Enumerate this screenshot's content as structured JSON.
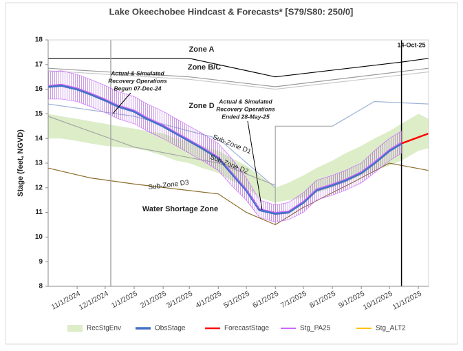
{
  "chart_data": {
    "type": "line",
    "title": "Lake Okeechobee Hindcast & Forecasts* [S79/S80: 250/0]",
    "y_label": "Stage (feet, NGVD)",
    "ylim": [
      8,
      18
    ],
    "yticks": [
      8,
      9,
      10,
      11,
      12,
      13,
      14,
      15,
      16,
      17,
      18
    ],
    "xlim": [
      "10/1/2024",
      "11/12/2025"
    ],
    "xticks": [
      "11/1/2024",
      "12/1/2024",
      "1/1/2025",
      "2/1/2025",
      "3/1/2025",
      "4/1/2025",
      "5/1/2025",
      "6/1/2025",
      "7/1/2025",
      "8/1/2025",
      "9/1/2025",
      "10/1/2025",
      "11/1/2025"
    ],
    "x": [
      "10/1/2024",
      "10/15/2024",
      "11/1/2024",
      "11/15/2024",
      "12/1/2024",
      "12/15/2024",
      "1/1/2025",
      "1/15/2025",
      "2/1/2025",
      "2/15/2025",
      "3/1/2025",
      "3/15/2025",
      "4/1/2025",
      "4/15/2025",
      "5/1/2025",
      "5/15/2025",
      "6/1/2025",
      "6/15/2025",
      "7/1/2025",
      "7/15/2025",
      "8/1/2025",
      "8/15/2025",
      "9/1/2025",
      "9/15/2025",
      "10/1/2025",
      "10/14/2025",
      "11/1/2025",
      "11/12/2025"
    ],
    "series": [
      {
        "name": "RecStgEnv",
        "color": "#dcedc8",
        "low": [
          14.0,
          14.0,
          13.9,
          13.8,
          13.7,
          13.65,
          13.6,
          13.5,
          13.3,
          13.1,
          13.0,
          12.8,
          12.6,
          12.3,
          12.0,
          11.6,
          11.4,
          11.5,
          11.6,
          11.8,
          12.0,
          12.2,
          12.5,
          12.7,
          12.9,
          13.1,
          13.5,
          13.6
        ],
        "high": [
          15.0,
          14.9,
          14.8,
          14.7,
          14.6,
          14.5,
          14.4,
          14.3,
          14.2,
          14.0,
          13.9,
          13.7,
          13.5,
          13.2,
          12.9,
          12.5,
          12.0,
          12.2,
          12.5,
          12.8,
          13.1,
          13.4,
          13.7,
          14.0,
          14.3,
          14.6,
          15.0,
          14.8
        ]
      },
      {
        "name": "ObsStage",
        "color": "#4472c4",
        "values": [
          16.1,
          16.15,
          16.0,
          15.8,
          15.55,
          15.3,
          15.1,
          14.8,
          14.5,
          14.2,
          13.9,
          13.6,
          13.2,
          12.6,
          11.9,
          11.1,
          10.95,
          11.0,
          11.4,
          11.9,
          12.1,
          12.3,
          12.6,
          13.0,
          13.5,
          13.8,
          null,
          null
        ]
      },
      {
        "name": "ForecastStage",
        "color": "#ff0000",
        "values": [
          null,
          null,
          null,
          null,
          null,
          null,
          null,
          null,
          null,
          null,
          null,
          null,
          null,
          null,
          null,
          null,
          null,
          null,
          null,
          null,
          null,
          null,
          null,
          null,
          null,
          13.8,
          14.05,
          14.2
        ]
      },
      {
        "name": "Stg_PA25",
        "color": "#cc66ff",
        "hatch": true,
        "values": [
          16.15,
          16.2,
          16.05,
          15.85,
          15.6,
          15.35,
          15.15,
          14.85,
          14.55,
          14.25,
          13.95,
          13.65,
          13.25,
          12.65,
          11.95,
          11.15,
          11.0,
          11.05,
          11.45,
          11.95,
          12.15,
          12.35,
          12.65,
          13.05,
          13.55,
          13.85,
          null,
          null
        ],
        "low": [
          15.6,
          15.6,
          15.5,
          15.3,
          15.05,
          14.8,
          14.6,
          14.3,
          14.0,
          13.7,
          13.4,
          13.1,
          12.7,
          12.1,
          11.5,
          10.8,
          10.6,
          10.7,
          11.0,
          11.5,
          11.7,
          11.9,
          12.2,
          12.6,
          13.1,
          13.4,
          null,
          null
        ],
        "high": [
          16.7,
          16.75,
          16.6,
          16.4,
          16.15,
          15.9,
          15.7,
          15.4,
          15.1,
          14.8,
          14.5,
          14.2,
          13.8,
          13.2,
          12.4,
          11.5,
          11.3,
          11.4,
          11.8,
          12.3,
          12.5,
          12.7,
          13.0,
          13.5,
          14.0,
          14.3,
          null,
          null
        ]
      },
      {
        "name": "Stg_ALT2",
        "color": "#ffc000",
        "values": [
          null,
          null,
          null,
          null,
          null,
          null,
          null,
          null,
          null,
          null,
          null,
          null,
          null,
          null,
          null,
          null,
          null,
          null,
          null,
          null,
          null,
          null,
          null,
          null,
          null,
          null,
          null,
          null
        ]
      }
    ],
    "reference_lines": [
      {
        "color": "#000000",
        "x": [
          "10/1/2024",
          "3/1/2025",
          "6/1/2025",
          "10/14/2025",
          "11/12/2025"
        ],
        "values": [
          17.25,
          17.25,
          16.5,
          17.1,
          17.25
        ]
      },
      {
        "color": "#999999",
        "x": [
          "10/1/2024",
          "3/1/2025",
          "6/1/2025",
          "11/12/2025"
        ],
        "values": [
          16.85,
          16.5,
          16.1,
          16.85
        ]
      },
      {
        "color": "#c8c8c8",
        "x": [
          "10/1/2024",
          "3/1/2025",
          "6/1/2025",
          "11/12/2025"
        ],
        "values": [
          16.75,
          16.4,
          16.0,
          16.7
        ]
      },
      {
        "color": "#9db3d6",
        "x": [
          "10/1/2024",
          "1/1/2025",
          "3/1/2025",
          "4/1/2025",
          "6/1/2025",
          "7/1/2025",
          "8/1/2025",
          "9/15/2025",
          "11/12/2025"
        ],
        "values": [
          15.4,
          14.9,
          14.3,
          14.0,
          12.0,
          null,
          14.5,
          15.5,
          15.4
        ]
      },
      {
        "color": "#a6a6a6",
        "x": [
          "10/1/2024",
          "1/1/2025",
          "4/1/2025",
          "6/1/2025"
        ],
        "values": [
          14.9,
          13.65,
          13.0,
          12.1
        ]
      },
      {
        "color": "#a6a6a6",
        "x": [
          "6/1/2025",
          "6/1/2025",
          "8/1/2025"
        ],
        "values": [
          10.5,
          14.5,
          14.5
        ]
      },
      {
        "color": "#8b6d2b",
        "x": [
          "10/1/2024",
          "11/15/2024",
          "1/1/2025",
          "4/1/2025",
          "5/1/2025",
          "6/1/2025",
          "7/1/2025",
          "8/1/2025",
          "9/1/2025",
          "10/1/2025",
          "11/12/2025"
        ],
        "values": [
          12.8,
          12.4,
          12.15,
          11.75,
          11.0,
          10.5,
          11.2,
          11.8,
          12.4,
          13.0,
          12.7
        ]
      }
    ],
    "vlines": [
      {
        "x": "12/7/2024",
        "color": "#a6a6a6"
      },
      {
        "x": "10/14/2025",
        "color": "#000000"
      }
    ],
    "annotations": [
      "Zone A",
      "Zone B/C",
      "Zone D",
      "Sub-Zone D1",
      "Sub-Zone D2",
      "Sub-Zone D3",
      "Water Shortage Zone",
      "Actual & Simulated",
      "Recovery Operations",
      "Begun 07-Dec-24",
      "Actual & Simulated",
      "Recovery Operations",
      "Ended 28-May-25",
      "14-Oct-25"
    ]
  }
}
